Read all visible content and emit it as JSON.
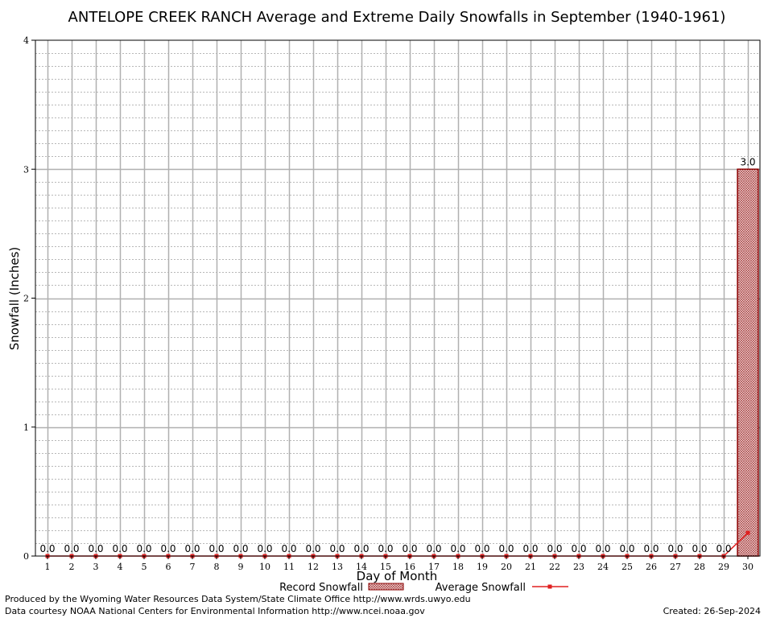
{
  "colors": {
    "grid_major": "#b0b0b0",
    "grid_minor": "#b8b8b8",
    "bar_edge": "#8b0000",
    "bar_fill": "#e8c8c8",
    "average_line": "#e02020"
  },
  "chart_data": {
    "type": "bar",
    "title": "ANTELOPE CREEK RANCH Average and Extreme Daily Snowfalls in September (1940-1961)",
    "xlabel": "Day of Month",
    "ylabel": "Snowfall (Inches)",
    "ylim": [
      0,
      4
    ],
    "yticks": [
      "0",
      "1",
      "2",
      "3",
      "4"
    ],
    "grid": true,
    "categories": [
      "1",
      "2",
      "3",
      "4",
      "5",
      "6",
      "7",
      "8",
      "9",
      "10",
      "11",
      "12",
      "13",
      "14",
      "15",
      "16",
      "17",
      "18",
      "19",
      "20",
      "21",
      "22",
      "23",
      "24",
      "25",
      "26",
      "27",
      "28",
      "29",
      "30"
    ],
    "series": [
      {
        "name": "Record Snowfall",
        "type": "bar",
        "values": [
          0,
          0,
          0,
          0,
          0,
          0,
          0,
          0,
          0,
          0,
          0,
          0,
          0,
          0,
          0,
          0,
          0,
          0,
          0,
          0,
          0,
          0,
          0,
          0,
          0,
          0,
          0,
          0,
          0,
          3.0
        ],
        "labels": [
          "0.0",
          "0.0",
          "0.0",
          "0.0",
          "0.0",
          "0.0",
          "0.0",
          "0.0",
          "0.0",
          "0.0",
          "0.0",
          "0.0",
          "0.0",
          "0.0",
          "0.0",
          "0.0",
          "0.0",
          "0.0",
          "0.0",
          "0.0",
          "0.0",
          "0.0",
          "0.0",
          "0.0",
          "0.0",
          "0.0",
          "0.0",
          "0.0",
          "0.0",
          "3.0"
        ]
      },
      {
        "name": "Average Snowfall",
        "type": "line",
        "values": [
          0,
          0,
          0,
          0,
          0,
          0,
          0,
          0,
          0,
          0,
          0,
          0,
          0,
          0,
          0,
          0,
          0,
          0,
          0,
          0,
          0,
          0,
          0,
          0,
          0,
          0,
          0,
          0,
          0,
          0.18
        ]
      }
    ],
    "legend": {
      "position": "bottom",
      "record_label": "Record Snowfall",
      "average_label": "Average Snowfall"
    }
  },
  "footer": {
    "line1": "Produced by the Wyoming Water Resources Data System/State Climate Office http://www.wrds.uwyo.edu",
    "line2": "Data courtesy NOAA National Centers for Environmental Information http://www.ncei.noaa.gov",
    "created": "Created:  26-Sep-2024"
  }
}
